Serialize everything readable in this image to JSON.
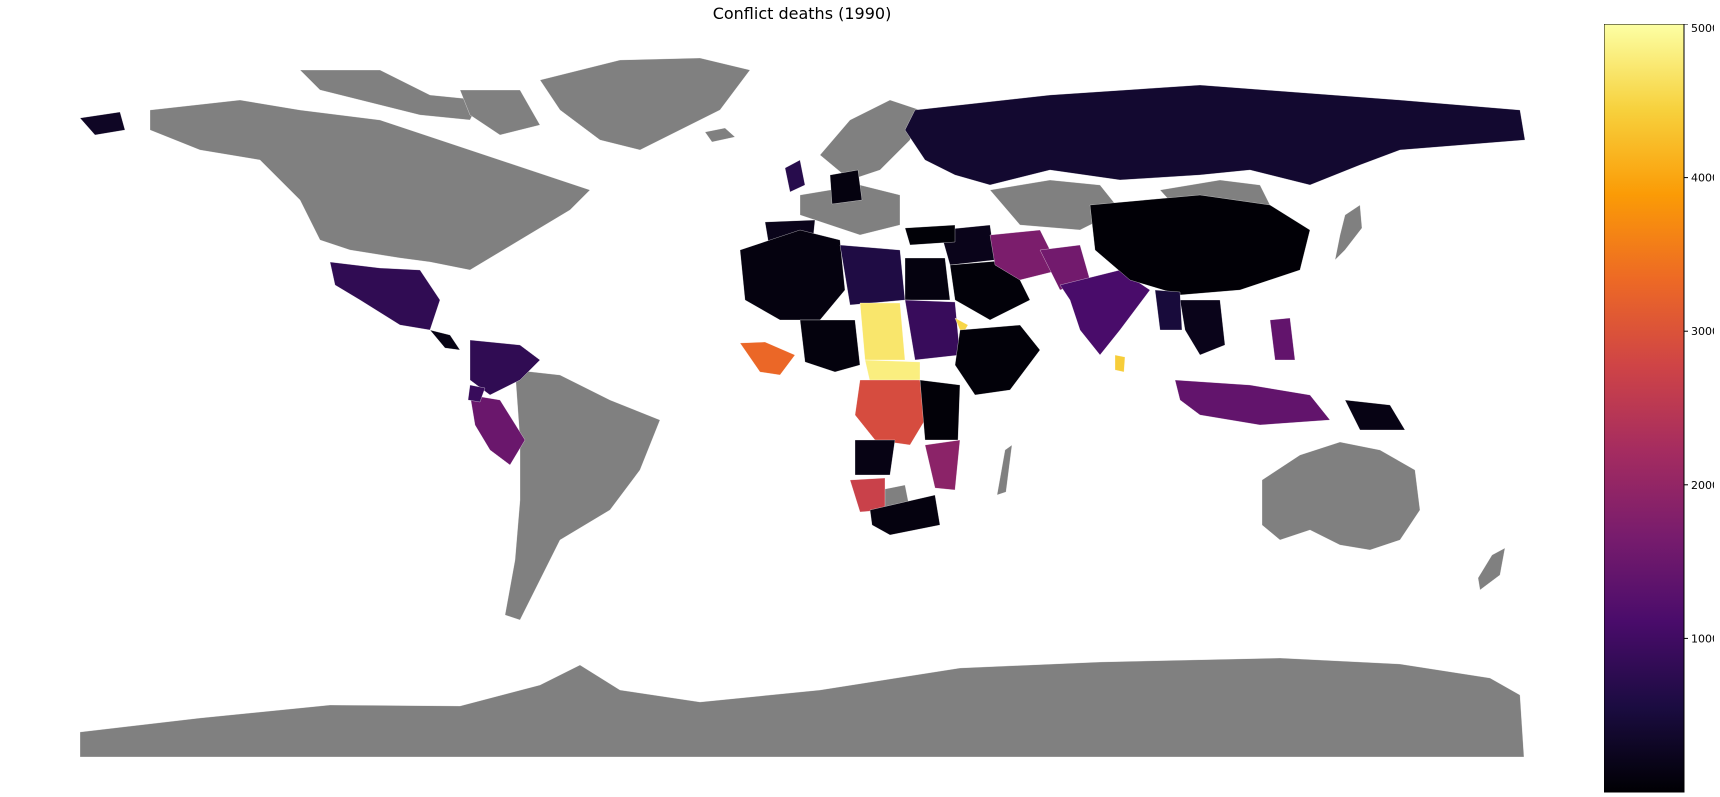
{
  "title": "Conflict deaths (1990)",
  "map": {
    "projection": "plate-carree",
    "no_data_color": "#808080",
    "background": "#ffffff",
    "colormap": "inferno",
    "vmin": 0,
    "vmax": 5000
  },
  "colorbar": {
    "ticks": [
      "1000",
      "2000",
      "3000",
      "4000",
      "5000"
    ],
    "tick_values": [
      1000,
      2000,
      3000,
      4000,
      5000
    ],
    "stops": [
      "#000004",
      "#1b0c41",
      "#4a0c6b",
      "#781c6d",
      "#a52c60",
      "#cf4446",
      "#ed6925",
      "#fb9b06",
      "#f7d13d",
      "#fcffa4"
    ]
  }
}
